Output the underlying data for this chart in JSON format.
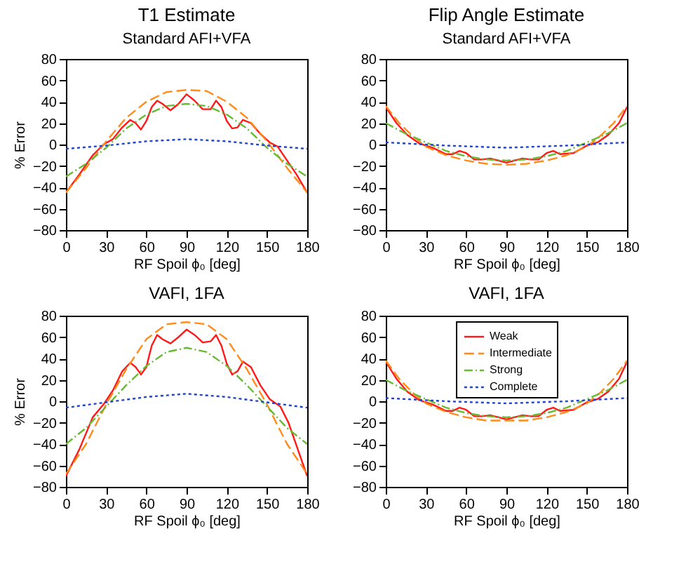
{
  "chart_data": [
    {
      "type": "line",
      "title": "T1 Estimate",
      "subtitle": "Standard AFI+VFA",
      "xlabel": "RF Spoil ϕ₀ [deg]",
      "ylabel": "% Error",
      "xlim": [
        0,
        180
      ],
      "xticks": [
        0,
        30,
        60,
        90,
        120,
        150,
        180
      ],
      "ylim": [
        -80,
        80
      ],
      "yticks": [
        -80,
        -60,
        -40,
        -20,
        0,
        20,
        40,
        60,
        80
      ],
      "legend": false,
      "series": [
        {
          "color": "#ff1a1a",
          "line_style": "solid",
          "x": [
            0,
            10,
            20,
            28,
            35,
            42,
            48,
            52,
            56,
            60,
            64,
            68,
            72,
            78,
            84,
            90,
            96,
            102,
            108,
            112,
            116,
            120,
            124,
            128,
            132,
            138,
            145,
            152,
            158,
            165,
            172,
            180
          ],
          "values": [
            -45,
            -28,
            -10,
            0,
            5,
            16,
            23,
            20,
            14,
            22,
            35,
            41,
            38,
            32,
            38,
            47,
            41,
            33,
            33,
            41,
            35,
            22,
            15,
            16,
            23,
            20,
            10,
            2,
            -2,
            -15,
            -28,
            -45
          ]
        },
        {
          "color": "#ff8c1a",
          "line_style": "dashed",
          "x": [
            0,
            15,
            30,
            45,
            60,
            75,
            90,
            105,
            120,
            135,
            150,
            165,
            180
          ],
          "values": [
            -45,
            -22,
            3,
            25,
            40,
            49,
            51,
            50,
            40,
            25,
            3,
            -22,
            -45
          ]
        },
        {
          "color": "#66bb33",
          "line_style": "dashdot",
          "x": [
            0,
            15,
            30,
            45,
            60,
            75,
            90,
            105,
            120,
            135,
            150,
            165,
            180
          ],
          "values": [
            -30,
            -18,
            -3,
            15,
            28,
            36,
            38,
            36,
            28,
            15,
            -3,
            -18,
            -30
          ]
        },
        {
          "color": "#2244cc",
          "line_style": "dotted",
          "x": [
            0,
            30,
            60,
            90,
            120,
            150,
            180
          ],
          "values": [
            -4,
            -1,
            3,
            5,
            3,
            -1,
            -4
          ]
        }
      ]
    },
    {
      "type": "line",
      "title": "Flip Angle Estimate",
      "subtitle": "Standard AFI+VFA",
      "xlabel": "RF Spoil ϕ₀ [deg]",
      "xlim": [
        0,
        180
      ],
      "xticks": [
        0,
        30,
        60,
        90,
        120,
        150,
        180
      ],
      "ylim": [
        -80,
        80
      ],
      "yticks": [
        -80,
        -60,
        -40,
        -20,
        0,
        20,
        40,
        60,
        80
      ],
      "legend": false,
      "series": [
        {
          "color": "#ff1a1a",
          "line_style": "solid",
          "x": [
            0,
            8,
            16,
            25,
            35,
            45,
            50,
            55,
            60,
            66,
            72,
            78,
            84,
            90,
            96,
            102,
            108,
            114,
            120,
            125,
            130,
            140,
            150,
            158,
            166,
            174,
            180
          ],
          "values": [
            35,
            20,
            9,
            1,
            -3,
            -9,
            -9,
            -6,
            -8,
            -14,
            -14,
            -13,
            -15,
            -17,
            -15,
            -13,
            -14,
            -14,
            -8,
            -6,
            -9,
            -8,
            -1,
            2,
            9,
            20,
            35
          ]
        },
        {
          "color": "#ff8c1a",
          "line_style": "dashed",
          "x": [
            0,
            10,
            20,
            30,
            45,
            60,
            75,
            90,
            105,
            120,
            135,
            150,
            160,
            170,
            180
          ],
          "values": [
            36,
            20,
            8,
            -2,
            -10,
            -15,
            -18,
            -19,
            -18,
            -15,
            -10,
            -2,
            8,
            20,
            36
          ]
        },
        {
          "color": "#66bb33",
          "line_style": "dashdot",
          "x": [
            0,
            15,
            30,
            45,
            60,
            75,
            90,
            105,
            120,
            135,
            150,
            165,
            180
          ],
          "values": [
            20,
            10,
            2,
            -6,
            -11,
            -14,
            -15,
            -14,
            -11,
            -6,
            2,
            10,
            20
          ]
        },
        {
          "color": "#2244cc",
          "line_style": "dotted",
          "x": [
            0,
            45,
            90,
            135,
            180
          ],
          "values": [
            2,
            -1,
            -3,
            -1,
            2
          ]
        }
      ]
    },
    {
      "type": "line",
      "title": "VAFI, 1FA",
      "xlabel": "RF Spoil ϕ₀ [deg]",
      "ylabel": "% Error",
      "xlim": [
        0,
        180
      ],
      "xticks": [
        0,
        30,
        60,
        90,
        120,
        150,
        180
      ],
      "ylim": [
        -80,
        80
      ],
      "yticks": [
        -80,
        -60,
        -40,
        -20,
        0,
        20,
        40,
        60,
        80
      ],
      "legend": false,
      "series": [
        {
          "color": "#ff1a1a",
          "line_style": "solid",
          "x": [
            0,
            10,
            20,
            28,
            35,
            42,
            48,
            52,
            56,
            60,
            64,
            68,
            72,
            78,
            84,
            90,
            96,
            102,
            108,
            112,
            116,
            120,
            124,
            128,
            132,
            138,
            145,
            152,
            160,
            166,
            173,
            180
          ],
          "values": [
            -70,
            -45,
            -15,
            -3,
            10,
            28,
            36,
            32,
            25,
            32,
            52,
            62,
            58,
            54,
            60,
            67,
            62,
            55,
            56,
            62,
            52,
            35,
            25,
            28,
            37,
            32,
            15,
            2,
            -5,
            -20,
            -45,
            -70
          ]
        },
        {
          "color": "#ff8c1a",
          "line_style": "dashed",
          "x": [
            0,
            15,
            30,
            45,
            60,
            75,
            90,
            105,
            120,
            135,
            150,
            165,
            180
          ],
          "values": [
            -68,
            -40,
            -3,
            30,
            58,
            72,
            74,
            72,
            58,
            30,
            -3,
            -40,
            -68
          ]
        },
        {
          "color": "#66bb33",
          "line_style": "dashdot",
          "x": [
            0,
            15,
            30,
            45,
            60,
            75,
            90,
            105,
            120,
            135,
            150,
            165,
            180
          ],
          "values": [
            -40,
            -25,
            -5,
            15,
            33,
            46,
            50,
            46,
            33,
            15,
            -5,
            -25,
            -40
          ]
        },
        {
          "color": "#2244cc",
          "line_style": "dotted",
          "x": [
            0,
            30,
            60,
            90,
            120,
            150,
            180
          ],
          "values": [
            -6,
            -1,
            4,
            7,
            4,
            -1,
            -6
          ]
        }
      ]
    },
    {
      "type": "line",
      "title": "VAFI, 1FA",
      "xlabel": "RF Spoil ϕ₀ [deg]",
      "xlim": [
        0,
        180
      ],
      "xticks": [
        0,
        30,
        60,
        90,
        120,
        150,
        180
      ],
      "ylim": [
        -80,
        80
      ],
      "yticks": [
        -80,
        -60,
        -40,
        -20,
        0,
        20,
        40,
        60,
        80
      ],
      "legend": "top",
      "series": [
        {
          "name": "Weak",
          "color": "#ff1a1a",
          "line_style": "solid",
          "x": [
            0,
            8,
            16,
            25,
            35,
            45,
            50,
            55,
            60,
            66,
            72,
            78,
            84,
            90,
            96,
            102,
            108,
            114,
            120,
            125,
            130,
            140,
            150,
            158,
            166,
            174,
            180
          ],
          "values": [
            37,
            21,
            9,
            1,
            -3,
            -9,
            -9,
            -6,
            -8,
            -14,
            -14,
            -13,
            -15,
            -17,
            -15,
            -13,
            -14,
            -14,
            -8,
            -6,
            -9,
            -8,
            -1,
            2,
            9,
            21,
            37
          ]
        },
        {
          "name": "Intermediate",
          "color": "#ff8c1a",
          "line_style": "dashed",
          "x": [
            0,
            10,
            20,
            30,
            45,
            60,
            75,
            90,
            105,
            120,
            135,
            150,
            160,
            170,
            180
          ],
          "values": [
            38,
            21,
            8,
            -2,
            -10,
            -15,
            -18,
            -18,
            -18,
            -15,
            -10,
            -2,
            8,
            21,
            38
          ]
        },
        {
          "name": "Strong",
          "color": "#66bb33",
          "line_style": "dashdot",
          "x": [
            0,
            15,
            30,
            45,
            60,
            75,
            90,
            105,
            120,
            135,
            150,
            165,
            180
          ],
          "values": [
            20,
            10,
            2,
            -6,
            -11,
            -14,
            -15,
            -14,
            -11,
            -6,
            2,
            10,
            20
          ]
        },
        {
          "name": "Complete",
          "color": "#2244cc",
          "line_style": "dotted",
          "x": [
            0,
            45,
            90,
            135,
            180
          ],
          "values": [
            3,
            0,
            -2,
            0,
            3
          ]
        }
      ]
    }
  ]
}
